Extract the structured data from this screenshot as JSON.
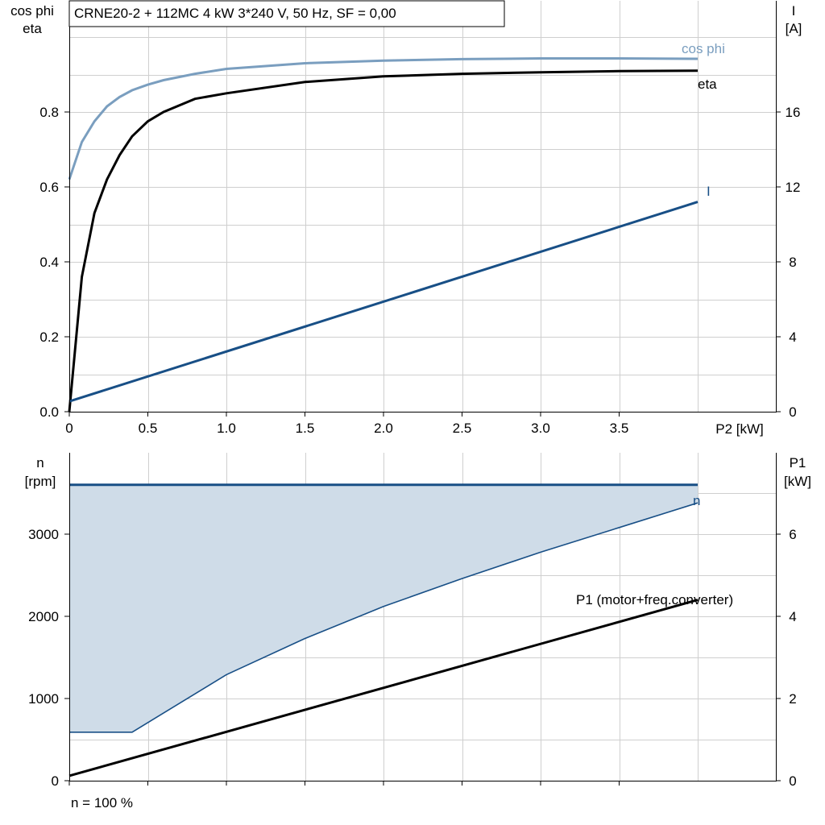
{
  "chart_data": [
    {
      "type": "line",
      "title": "CRNE20-2 + 112MC   4 kW   3*240 V, 50 Hz, SF = 0,00",
      "xlabel": "P2 [kW]",
      "ylabel_left": [
        "cos phi",
        "eta"
      ],
      "ylabel_right": [
        "I",
        "[A]"
      ],
      "xlim": [
        0,
        4
      ],
      "ylim_left": [
        0,
        1
      ],
      "ylim_right": [
        0,
        19.5
      ],
      "x_ticks": [
        "0",
        "0.5",
        "1.0",
        "1.5",
        "2.0",
        "2.5",
        "3.0",
        "3.5"
      ],
      "y_ticks_left": [
        "0.0",
        "0.2",
        "0.4",
        "0.6",
        "0.8"
      ],
      "y_ticks_right": [
        "0",
        "4",
        "8",
        "12",
        "16"
      ],
      "grid": true,
      "colors": {
        "cos_phi": "#7a9ebf",
        "eta": "#000000",
        "I": "#184f86"
      },
      "series": [
        {
          "name": "cos phi",
          "axis": "left",
          "x": [
            0,
            0.08,
            0.16,
            0.24,
            0.32,
            0.4,
            0.5,
            0.6,
            0.8,
            1.0,
            1.5,
            2.0,
            2.5,
            3.0,
            3.5,
            4.0
          ],
          "y": [
            0.62,
            0.72,
            0.775,
            0.815,
            0.84,
            0.858,
            0.873,
            0.885,
            0.902,
            0.915,
            0.93,
            0.937,
            0.941,
            0.943,
            0.943,
            0.942
          ]
        },
        {
          "name": "eta",
          "axis": "left",
          "x": [
            0,
            0.08,
            0.16,
            0.24,
            0.32,
            0.4,
            0.5,
            0.6,
            0.8,
            1.0,
            1.5,
            2.0,
            2.5,
            3.0,
            3.5,
            4.0
          ],
          "y": [
            0.0,
            0.36,
            0.53,
            0.62,
            0.685,
            0.735,
            0.775,
            0.8,
            0.835,
            0.85,
            0.88,
            0.895,
            0.902,
            0.906,
            0.909,
            0.91
          ]
        },
        {
          "name": "I",
          "axis": "right",
          "x": [
            0,
            4.0
          ],
          "y": [
            0.55,
            11.2
          ]
        }
      ]
    },
    {
      "type": "line",
      "footer": "n = 100 %",
      "ylabel_left": [
        "n",
        "[rpm]"
      ],
      "ylabel_right": [
        "P1",
        "[kW]"
      ],
      "xlim": [
        0,
        4
      ],
      "ylim_left": [
        0,
        3750
      ],
      "ylim_right": [
        0,
        7.5
      ],
      "y_ticks_left": [
        "0",
        "1000",
        "2000",
        "3000"
      ],
      "y_ticks_right": [
        "0",
        "2",
        "4",
        "6"
      ],
      "grid": true,
      "colors": {
        "n": "#184f86",
        "band_fill": "#cfdce8",
        "P1": "#000000"
      },
      "series": [
        {
          "name": "n",
          "axis": "left",
          "x": [
            0,
            4.0
          ],
          "y": [
            3600,
            3600
          ]
        },
        {
          "name": "",
          "axis": "left",
          "role": "band-lower",
          "x": [
            0,
            0.4,
            1.0,
            1.5,
            2.0,
            2.5,
            3.0,
            3.5,
            4.0
          ],
          "y": [
            590,
            590,
            1290,
            1730,
            2120,
            2460,
            2780,
            3080,
            3380
          ]
        },
        {
          "name": "P1 (motor+freq.converter)",
          "axis": "right",
          "x": [
            0,
            4.0
          ],
          "y": [
            0.12,
            4.4
          ]
        }
      ]
    }
  ]
}
